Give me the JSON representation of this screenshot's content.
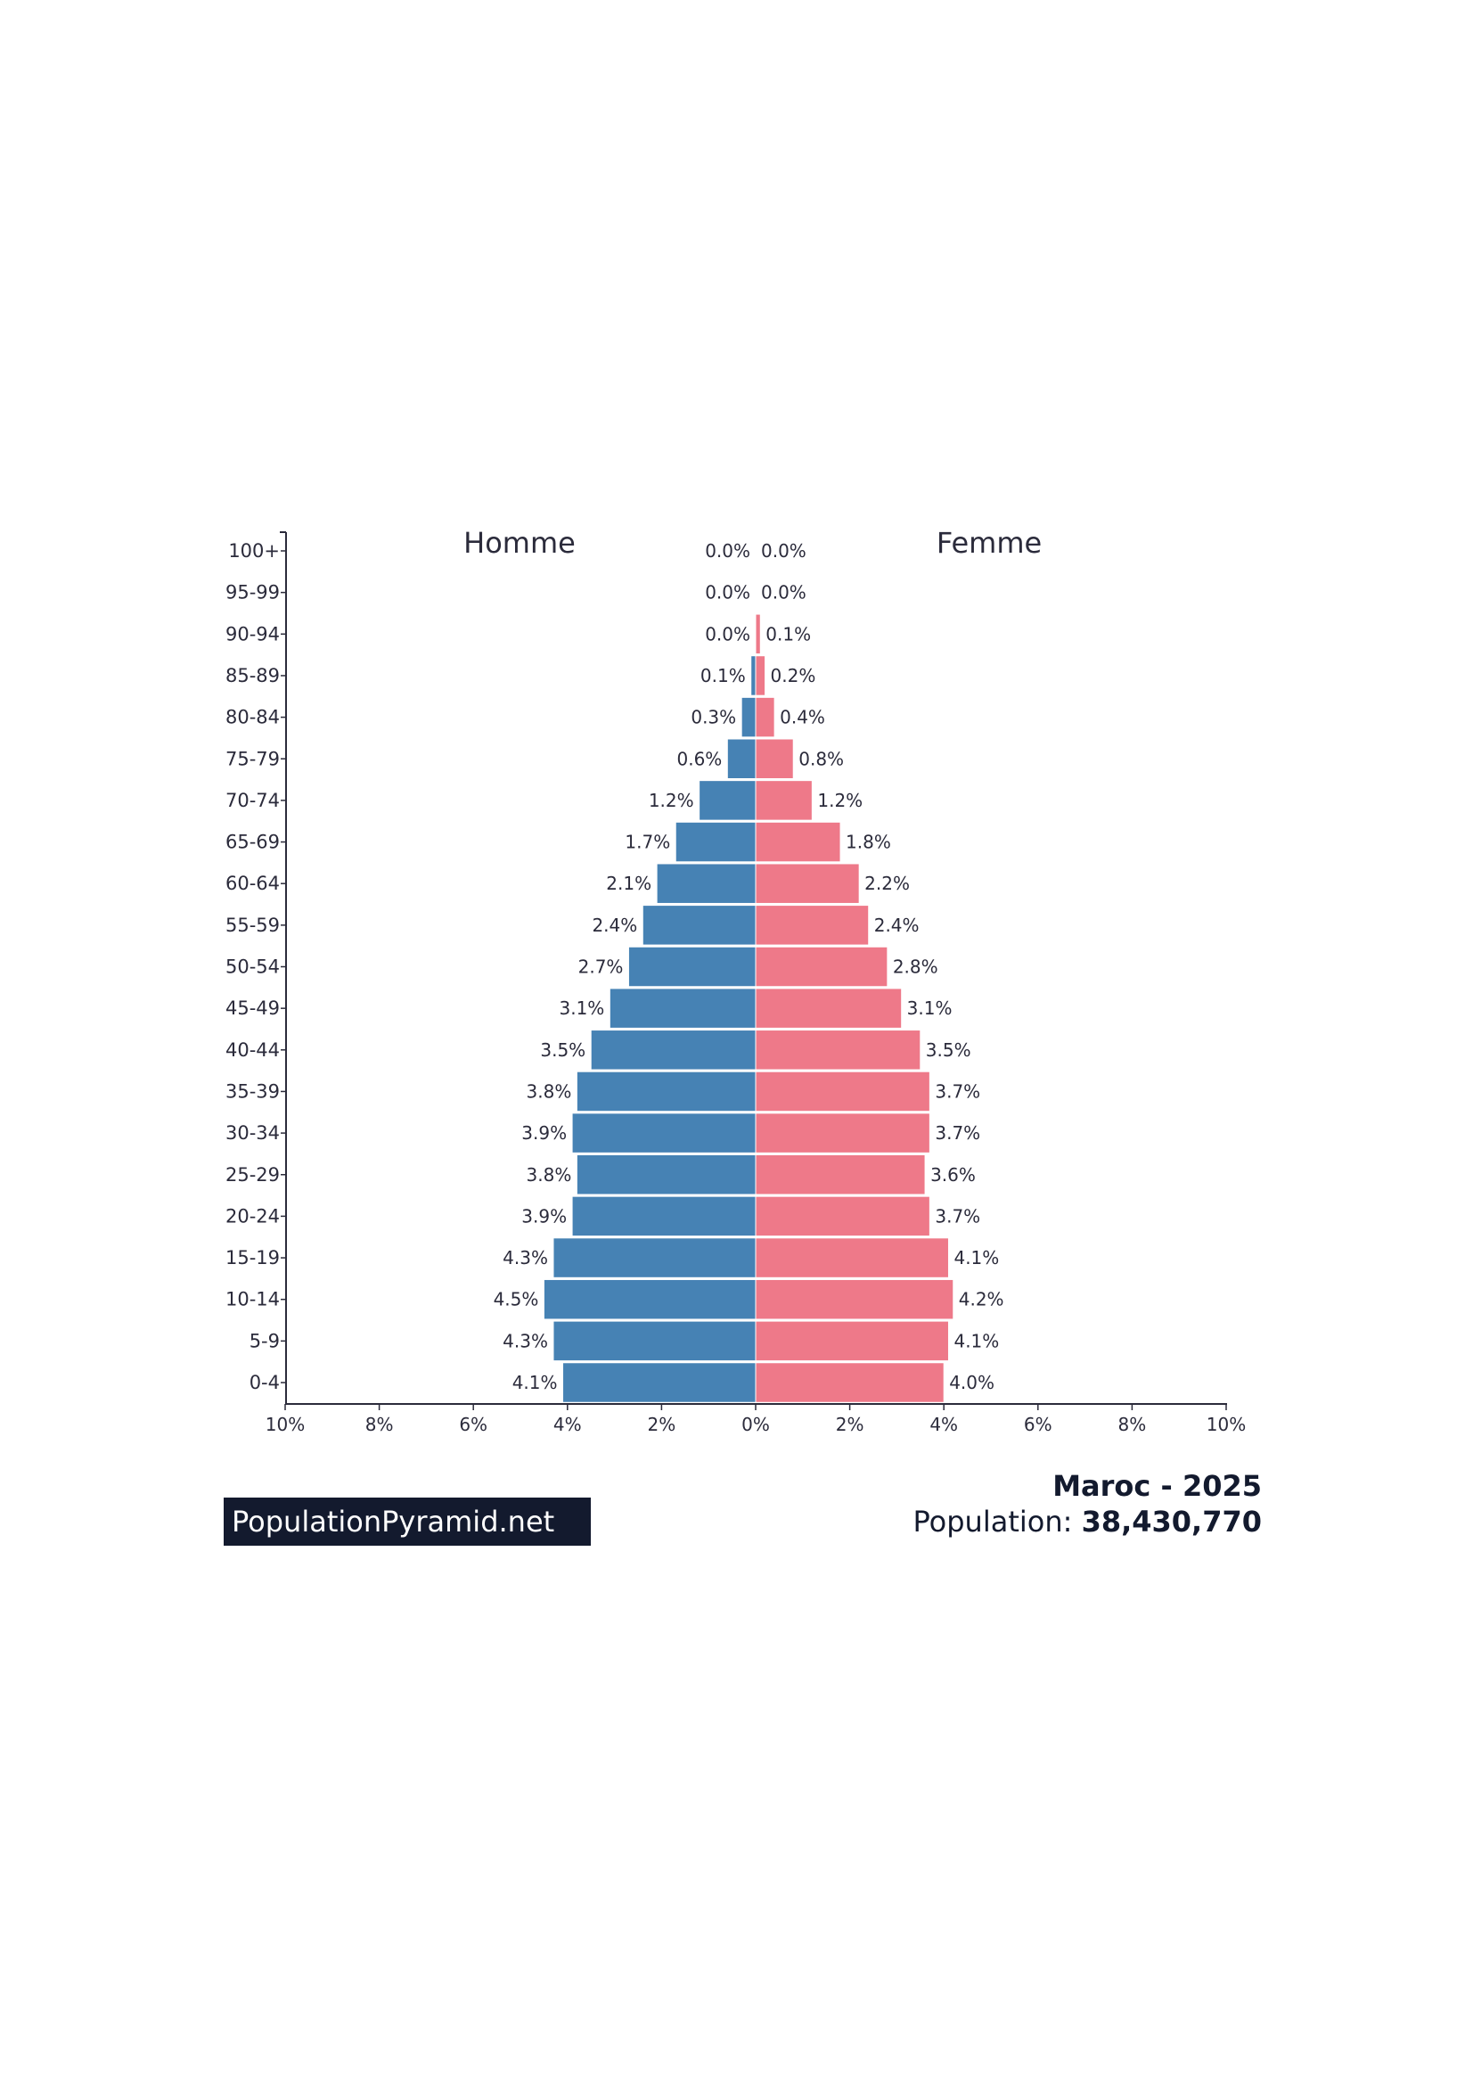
{
  "chart_data": {
    "type": "bar",
    "subtype": "population-pyramid",
    "categories": [
      "100+",
      "95-99",
      "90-94",
      "85-89",
      "80-84",
      "75-79",
      "70-74",
      "65-69",
      "60-64",
      "55-59",
      "50-54",
      "45-49",
      "40-44",
      "35-39",
      "30-34",
      "25-29",
      "20-24",
      "15-19",
      "10-14",
      "5-9",
      "0-4"
    ],
    "series": [
      {
        "name": "Homme",
        "color": "#4682b4",
        "values": [
          0.0,
          0.0,
          0.0,
          0.1,
          0.3,
          0.6,
          1.2,
          1.7,
          2.1,
          2.4,
          2.7,
          3.1,
          3.5,
          3.8,
          3.9,
          3.8,
          3.9,
          4.3,
          4.5,
          4.3,
          4.1
        ],
        "labels": [
          "0.0%",
          "0.0%",
          "0.0%",
          "0.1%",
          "0.3%",
          "0.6%",
          "1.2%",
          "1.7%",
          "2.1%",
          "2.4%",
          "2.7%",
          "3.1%",
          "3.5%",
          "3.8%",
          "3.9%",
          "3.8%",
          "3.9%",
          "4.3%",
          "4.5%",
          "4.3%",
          "4.1%"
        ]
      },
      {
        "name": "Femme",
        "color": "#ee7989",
        "values": [
          0.0,
          0.0,
          0.1,
          0.2,
          0.4,
          0.8,
          1.2,
          1.8,
          2.2,
          2.4,
          2.8,
          3.1,
          3.5,
          3.7,
          3.7,
          3.6,
          3.7,
          4.1,
          4.2,
          4.1,
          4.0
        ],
        "labels": [
          "0.0%",
          "0.0%",
          "0.1%",
          "0.2%",
          "0.4%",
          "0.8%",
          "1.2%",
          "1.8%",
          "2.2%",
          "2.4%",
          "2.8%",
          "3.1%",
          "3.5%",
          "3.7%",
          "3.7%",
          "3.6%",
          "3.7%",
          "4.1%",
          "4.2%",
          "4.1%",
          "4.0%"
        ]
      }
    ],
    "xlim": [
      -10,
      10
    ],
    "xticks": [
      "10%",
      "8%",
      "6%",
      "4%",
      "2%",
      "0%",
      "2%",
      "4%",
      "6%",
      "8%",
      "10%"
    ],
    "grid": false
  },
  "footer": {
    "logo": "PopulationPyramid.net",
    "title": "Maroc - 2025",
    "population_label": "Population: ",
    "population_value": "38,430,770"
  }
}
